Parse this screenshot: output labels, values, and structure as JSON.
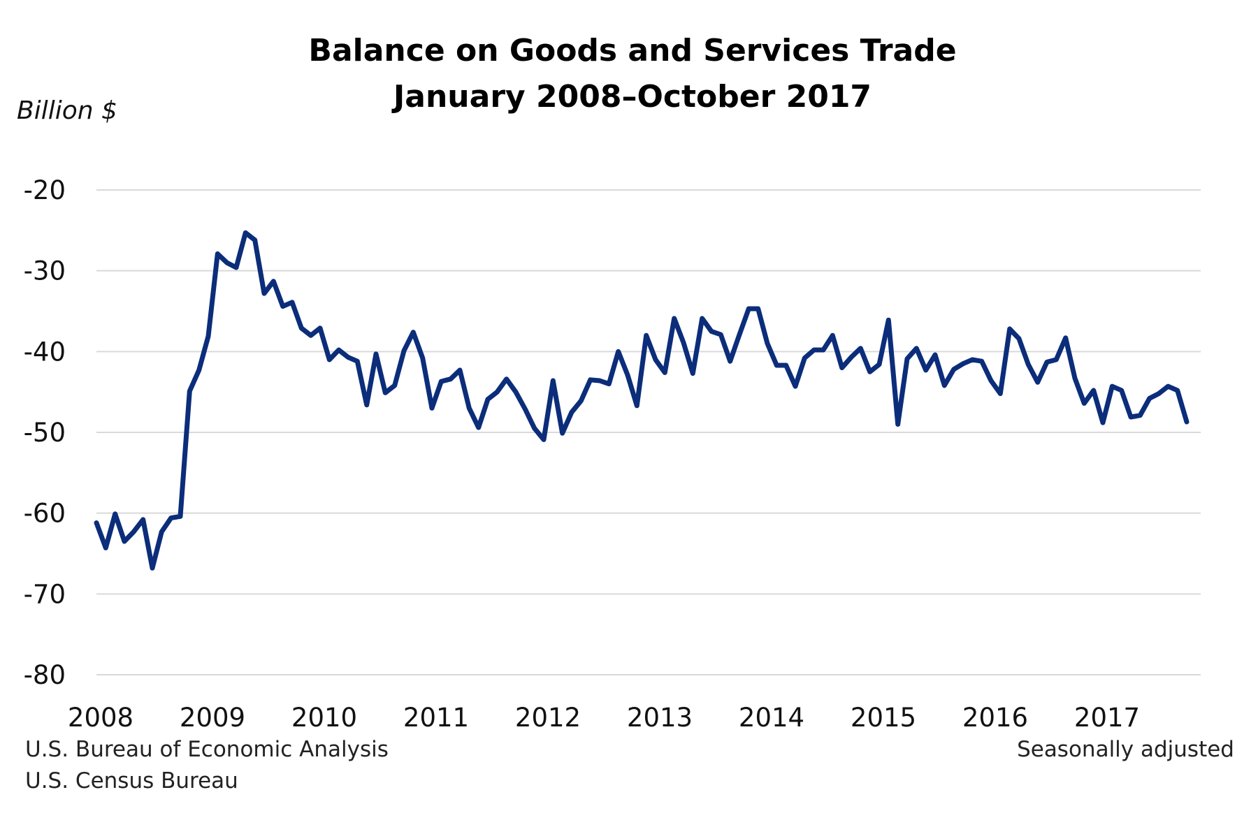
{
  "chart_data": {
    "type": "line",
    "title": "Balance on Goods and Services Trade",
    "subtitle": "January 2008–October 2017",
    "ylabel": "Billion $",
    "xlabel": "",
    "ylim": [
      -80,
      -20
    ],
    "yticks": [
      -20,
      -30,
      -40,
      -50,
      -60,
      -70,
      -80
    ],
    "xticks": [
      "2008",
      "2009",
      "2010",
      "2011",
      "2012",
      "2013",
      "2014",
      "2015",
      "2016",
      "2017"
    ],
    "x_start": "2008-01",
    "x_end": "2017-10",
    "grid": "horizontal",
    "legend": "none",
    "series": [
      {
        "name": "Balance on goods and services",
        "color": "#0b2d7a",
        "values": [
          -61.2,
          -64.3,
          -60.1,
          -63.5,
          -62.3,
          -60.8,
          -66.8,
          -62.3,
          -60.6,
          -60.4,
          -44.9,
          -42.3,
          -38.1,
          -27.9,
          -29.0,
          -29.6,
          -25.3,
          -26.2,
          -32.8,
          -31.3,
          -34.4,
          -33.9,
          -37.1,
          -38.0,
          -37.1,
          -41.0,
          -39.8,
          -40.7,
          -41.2,
          -46.6,
          -40.3,
          -45.1,
          -44.2,
          -39.9,
          -37.6,
          -40.8,
          -47.0,
          -43.7,
          -43.4,
          -42.3,
          -47.0,
          -49.4,
          -45.9,
          -45.0,
          -43.4,
          -45.0,
          -47.1,
          -49.5,
          -50.9,
          -43.6,
          -50.1,
          -47.5,
          -46.1,
          -43.5,
          -43.6,
          -44.0,
          -40.0,
          -42.9,
          -46.7,
          -38.0,
          -41.0,
          -42.6,
          -35.9,
          -38.9,
          -42.7,
          -35.9,
          -37.5,
          -37.9,
          -41.2,
          -37.9,
          -34.7,
          -34.7,
          -39.0,
          -41.7,
          -41.7,
          -44.3,
          -40.8,
          -39.8,
          -39.8,
          -38.0,
          -42.0,
          -40.7,
          -39.6,
          -42.5,
          -41.6,
          -36.1,
          -49.0,
          -40.9,
          -39.6,
          -42.3,
          -40.4,
          -44.2,
          -42.2,
          -41.5,
          -41.0,
          -41.2,
          -43.6,
          -45.2,
          -37.2,
          -38.4,
          -41.6,
          -43.8,
          -41.3,
          -41.0,
          -38.3,
          -43.3,
          -46.4,
          -44.8,
          -48.8,
          -44.3,
          -44.8,
          -48.1,
          -47.9,
          -45.8,
          -45.2,
          -44.3,
          -44.8,
          -48.7
        ]
      }
    ],
    "notes": {
      "source_line_1": "U.S. Bureau of Economic Analysis",
      "source_line_2": "U.S. Census Bureau",
      "adjustment": "Seasonally adjusted"
    }
  }
}
